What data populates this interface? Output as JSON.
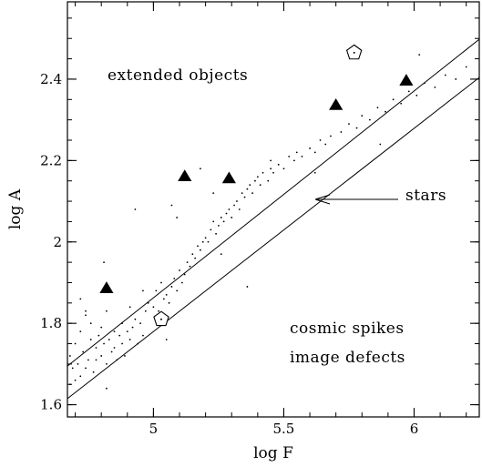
{
  "chart_data": {
    "type": "scatter",
    "xlabel": "log F",
    "ylabel": "log A",
    "xlim": [
      4.67,
      6.25
    ],
    "ylim": [
      1.57,
      2.59
    ],
    "x_ticks": [
      {
        "value": 5,
        "label": "5"
      },
      {
        "value": 5.5,
        "label": "5.5"
      },
      {
        "value": 6,
        "label": "6"
      }
    ],
    "y_ticks": [
      {
        "value": 1.6,
        "label": "1.6"
      },
      {
        "value": 1.8,
        "label": "1.8"
      },
      {
        "value": 2,
        "label": "2"
      },
      {
        "value": 2.2,
        "label": "2.2"
      },
      {
        "value": 2.4,
        "label": "2.4"
      }
    ],
    "x_minor_step": 0.1,
    "y_minor_step": 0.05,
    "grid": false,
    "band_lines": [
      {
        "x": [
          4.67,
          6.25
        ],
        "y": [
          1.695,
          2.498
        ]
      },
      {
        "x": [
          4.67,
          6.25
        ],
        "y": [
          1.615,
          2.404
        ]
      }
    ],
    "series": [
      {
        "marker": "filled-triangle",
        "points": [
          [
            4.82,
            1.885
          ],
          [
            5.12,
            2.16
          ],
          [
            5.29,
            2.155
          ],
          [
            5.7,
            2.335
          ],
          [
            5.97,
            2.395
          ]
        ]
      },
      {
        "marker": "open-pentagon",
        "points": [
          [
            5.03,
            1.81
          ],
          [
            5.77,
            2.465
          ]
        ]
      },
      {
        "marker": "dot",
        "points": [
          [
            4.68,
            1.65
          ],
          [
            4.68,
            1.72
          ],
          [
            4.69,
            1.69
          ],
          [
            4.7,
            1.66
          ],
          [
            4.7,
            1.75
          ],
          [
            4.71,
            1.7
          ],
          [
            4.72,
            1.67
          ],
          [
            4.72,
            1.78
          ],
          [
            4.73,
            1.73
          ],
          [
            4.74,
            1.69
          ],
          [
            4.74,
            1.82
          ],
          [
            4.75,
            1.71
          ],
          [
            4.76,
            1.76
          ],
          [
            4.76,
            1.8
          ],
          [
            4.77,
            1.68
          ],
          [
            4.78,
            1.74
          ],
          [
            4.78,
            1.71
          ],
          [
            4.79,
            1.77
          ],
          [
            4.8,
            1.72
          ],
          [
            4.8,
            1.79
          ],
          [
            4.81,
            1.75
          ],
          [
            4.82,
            1.7
          ],
          [
            4.82,
            1.83
          ],
          [
            4.83,
            1.76
          ],
          [
            4.84,
            1.73
          ],
          [
            4.85,
            1.78
          ],
          [
            4.85,
            1.74
          ],
          [
            4.86,
            1.71
          ],
          [
            4.87,
            1.77
          ],
          [
            4.88,
            1.75
          ],
          [
            4.88,
            1.8
          ],
          [
            4.89,
            1.72
          ],
          [
            4.9,
            1.78
          ],
          [
            4.91,
            1.84
          ],
          [
            4.91,
            1.76
          ],
          [
            4.92,
            1.79
          ],
          [
            4.93,
            1.81
          ],
          [
            4.94,
            1.75
          ],
          [
            4.95,
            1.8
          ],
          [
            4.96,
            1.77
          ],
          [
            4.97,
            1.83
          ],
          [
            4.98,
            1.85
          ],
          [
            4.72,
            1.86
          ],
          [
            4.74,
            1.83
          ],
          [
            4.82,
            1.64
          ],
          [
            4.81,
            1.95
          ],
          [
            4.93,
            2.08
          ],
          [
            4.96,
            1.88
          ],
          [
            5.0,
            1.84
          ],
          [
            5.01,
            1.88
          ],
          [
            5.02,
            1.83
          ],
          [
            5.03,
            1.9
          ],
          [
            5.04,
            1.86
          ],
          [
            5.05,
            1.87
          ],
          [
            5.06,
            1.85
          ],
          [
            5.07,
            1.89
          ],
          [
            5.08,
            1.91
          ],
          [
            5.09,
            1.88
          ],
          [
            5.1,
            1.93
          ],
          [
            5.11,
            1.9
          ],
          [
            5.12,
            1.92
          ],
          [
            5.13,
            1.95
          ],
          [
            5.14,
            1.94
          ],
          [
            5.15,
            1.97
          ],
          [
            5.16,
            1.96
          ],
          [
            5.17,
            1.99
          ],
          [
            5.18,
            1.98
          ],
          [
            5.19,
            2.0
          ],
          [
            5.2,
            2.01
          ],
          [
            5.21,
            2.0
          ],
          [
            5.22,
            2.03
          ],
          [
            5.23,
            2.05
          ],
          [
            5.24,
            2.02
          ],
          [
            5.25,
            2.04
          ],
          [
            5.26,
            2.06
          ],
          [
            5.27,
            2.05
          ],
          [
            5.28,
            2.07
          ],
          [
            5.29,
            2.08
          ],
          [
            5.3,
            2.06
          ],
          [
            5.31,
            2.09
          ],
          [
            5.32,
            2.1
          ],
          [
            5.33,
            2.08
          ],
          [
            5.34,
            2.12
          ],
          [
            5.35,
            2.11
          ],
          [
            5.36,
            2.13
          ],
          [
            5.37,
            2.14
          ],
          [
            5.38,
            2.12
          ],
          [
            5.39,
            2.15
          ],
          [
            5.4,
            2.16
          ],
          [
            5.41,
            2.14
          ],
          [
            5.42,
            2.17
          ],
          [
            5.44,
            2.15
          ],
          [
            5.45,
            2.18
          ],
          [
            5.46,
            2.17
          ],
          [
            5.48,
            2.19
          ],
          [
            5.5,
            2.18
          ],
          [
            5.52,
            2.21
          ],
          [
            5.54,
            2.2
          ],
          [
            5.55,
            2.22
          ],
          [
            5.57,
            2.21
          ],
          [
            5.6,
            2.23
          ],
          [
            5.62,
            2.22
          ],
          [
            5.64,
            2.25
          ],
          [
            5.66,
            2.24
          ],
          [
            5.68,
            2.26
          ],
          [
            5.72,
            2.27
          ],
          [
            5.75,
            2.29
          ],
          [
            5.78,
            2.28
          ],
          [
            5.8,
            2.31
          ],
          [
            5.83,
            2.3
          ],
          [
            5.86,
            2.33
          ],
          [
            5.89,
            2.32
          ],
          [
            5.92,
            2.35
          ],
          [
            5.95,
            2.34
          ],
          [
            5.98,
            2.37
          ],
          [
            6.01,
            2.36
          ],
          [
            6.04,
            2.39
          ],
          [
            6.08,
            2.38
          ],
          [
            6.12,
            2.41
          ],
          [
            6.16,
            2.4
          ],
          [
            6.2,
            2.43
          ],
          [
            5.09,
            2.06
          ],
          [
            5.18,
            2.18
          ],
          [
            5.23,
            2.12
          ],
          [
            5.36,
            1.89
          ],
          [
            5.45,
            2.2
          ],
          [
            5.62,
            2.17
          ],
          [
            5.05,
            1.76
          ],
          [
            5.07,
            2.09
          ],
          [
            5.26,
            1.97
          ],
          [
            5.87,
            2.24
          ],
          [
            6.02,
            2.46
          ]
        ]
      }
    ],
    "annotations": [
      {
        "text": "extended objects"
      },
      {
        "text": "stars"
      },
      {
        "text": "cosmic spikes"
      },
      {
        "text": "image defects"
      }
    ]
  }
}
